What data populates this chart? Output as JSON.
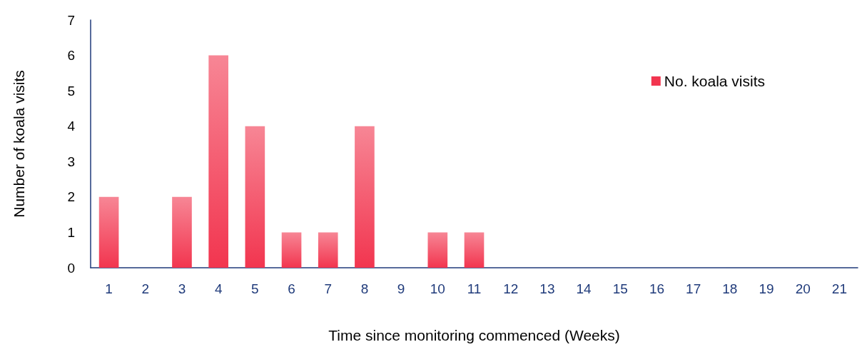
{
  "chart_data": {
    "type": "bar",
    "xlabel": "Time since monitoring commenced (Weeks)",
    "ylabel": "Number of koala visits",
    "categories": [
      "1",
      "2",
      "3",
      "4",
      "5",
      "6",
      "7",
      "8",
      "9",
      "10",
      "11",
      "12",
      "13",
      "14",
      "15",
      "16",
      "17",
      "18",
      "19",
      "20",
      "21"
    ],
    "series": [
      {
        "name": "No. koala visits",
        "color": "#f2354f",
        "values": [
          2,
          0,
          2,
          6,
          4,
          1,
          1,
          4,
          0,
          1,
          1,
          0,
          0,
          0,
          0,
          0,
          0,
          0,
          0,
          0,
          0
        ]
      }
    ],
    "ylim": [
      0,
      7
    ],
    "yticks": [
      0,
      1,
      2,
      3,
      4,
      5,
      6,
      7
    ],
    "grid": false,
    "legend": "top right"
  }
}
